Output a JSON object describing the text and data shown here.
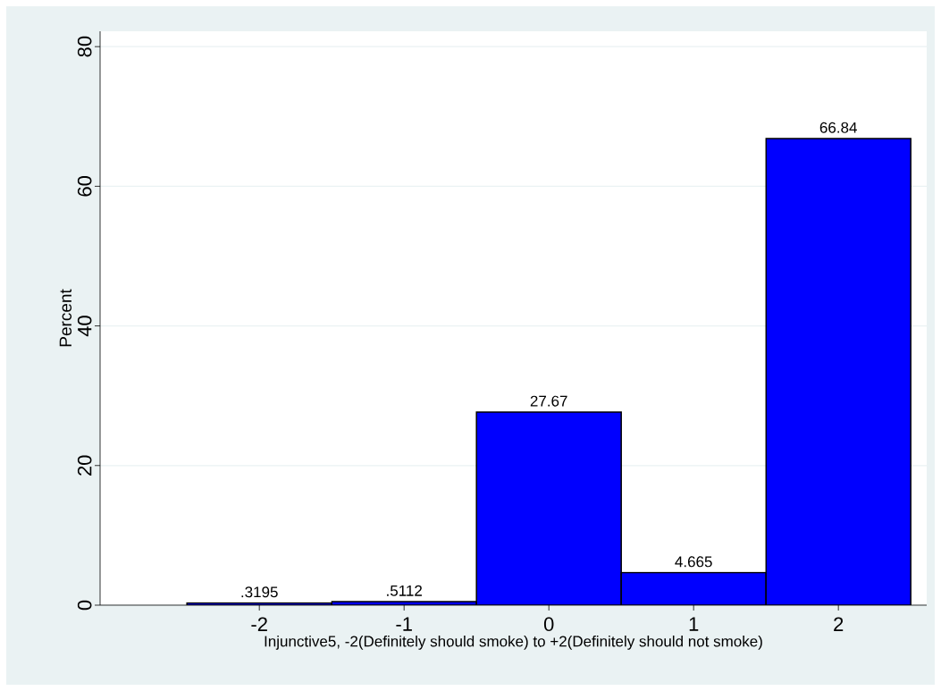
{
  "chart_data": {
    "type": "histogram",
    "xlabel": "Injunctive5, -2(Definitely should smoke) to +2(Definitely should not smoke)",
    "ylabel": "Percent",
    "bins": [
      -2.5,
      -1.5,
      -0.5,
      0.5,
      1.5,
      2.5
    ],
    "values": [
      0.3195,
      0.5112,
      27.67,
      4.665,
      66.84
    ],
    "value_labels": [
      ".3195",
      ".5112",
      "27.67",
      "4.665",
      "66.84"
    ],
    "color": "#0000ff",
    "xlim": [
      -3.1,
      2.61
    ],
    "ylim": [
      0,
      82.2
    ],
    "xticks": [
      -2,
      -1,
      0,
      1,
      2
    ],
    "yticks": [
      0,
      20,
      40,
      60,
      80
    ],
    "grid": "y"
  }
}
